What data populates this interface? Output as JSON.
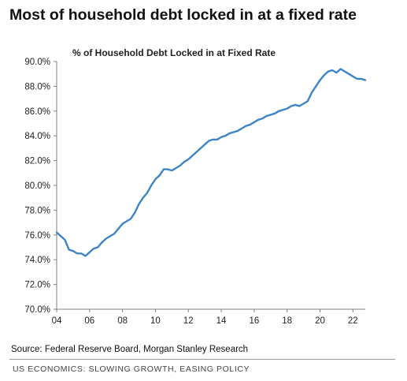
{
  "headline": "Most of household debt locked in at a fixed rate",
  "source": "Source: Federal Reserve Board, Morgan Stanley Research",
  "footer": "US ECONOMICS: SLOWING GROWTH, EASING POLICY",
  "colors": {
    "line": "#3d85c6",
    "axis": "#808080",
    "text": "#222222"
  },
  "chart_data": {
    "type": "line",
    "title": "% of Household Debt Locked in at Fixed Rate",
    "xlabel": "",
    "ylabel": "",
    "grid": false,
    "xlim": [
      2004,
      2022.75
    ],
    "ylim": [
      70,
      90
    ],
    "x_ticks": [
      2004,
      2006,
      2008,
      2010,
      2012,
      2014,
      2016,
      2018,
      2020,
      2022
    ],
    "x_tick_labels": [
      "04",
      "06",
      "08",
      "10",
      "12",
      "14",
      "16",
      "18",
      "20",
      "22"
    ],
    "y_ticks": [
      70,
      72,
      74,
      76,
      78,
      80,
      82,
      84,
      86,
      88,
      90
    ],
    "y_tick_labels": [
      "70.0%",
      "72.0%",
      "74.0%",
      "76.0%",
      "78.0%",
      "80.0%",
      "82.0%",
      "84.0%",
      "86.0%",
      "88.0%",
      "90.0%"
    ],
    "series": [
      {
        "x": [
          2004.0,
          2004.25,
          2004.5,
          2004.75,
          2005.0,
          2005.25,
          2005.5,
          2005.75,
          2006.0,
          2006.25,
          2006.5,
          2006.75,
          2007.0,
          2007.25,
          2007.5,
          2007.75,
          2008.0,
          2008.25,
          2008.5,
          2008.75,
          2009.0,
          2009.25,
          2009.5,
          2009.75,
          2010.0,
          2010.25,
          2010.5,
          2010.75,
          2011.0,
          2011.25,
          2011.5,
          2011.75,
          2012.0,
          2012.25,
          2012.5,
          2012.75,
          2013.0,
          2013.25,
          2013.5,
          2013.75,
          2014.0,
          2014.25,
          2014.5,
          2014.75,
          2015.0,
          2015.25,
          2015.5,
          2015.75,
          2016.0,
          2016.25,
          2016.5,
          2016.75,
          2017.0,
          2017.25,
          2017.5,
          2017.75,
          2018.0,
          2018.25,
          2018.5,
          2018.75,
          2019.0,
          2019.25,
          2019.5,
          2019.75,
          2020.0,
          2020.25,
          2020.5,
          2020.75,
          2021.0,
          2021.25,
          2021.5,
          2021.75,
          2022.0,
          2022.25,
          2022.5,
          2022.75
        ],
        "values": [
          76.2,
          75.9,
          75.6,
          74.8,
          74.7,
          74.5,
          74.5,
          74.3,
          74.6,
          74.9,
          75.0,
          75.4,
          75.7,
          75.9,
          76.1,
          76.5,
          76.9,
          77.1,
          77.3,
          77.8,
          78.5,
          79.0,
          79.4,
          80.0,
          80.5,
          80.8,
          81.3,
          81.3,
          81.2,
          81.4,
          81.6,
          81.9,
          82.1,
          82.4,
          82.7,
          83.0,
          83.3,
          83.6,
          83.7,
          83.7,
          83.9,
          84.0,
          84.2,
          84.3,
          84.4,
          84.6,
          84.8,
          84.9,
          85.1,
          85.3,
          85.4,
          85.6,
          85.7,
          85.8,
          86.0,
          86.1,
          86.2,
          86.4,
          86.5,
          86.4,
          86.6,
          86.8,
          87.5,
          88.0,
          88.5,
          88.9,
          89.2,
          89.3,
          89.1,
          89.4,
          89.2,
          89.0,
          88.8,
          88.6,
          88.6,
          88.5
        ]
      }
    ]
  }
}
